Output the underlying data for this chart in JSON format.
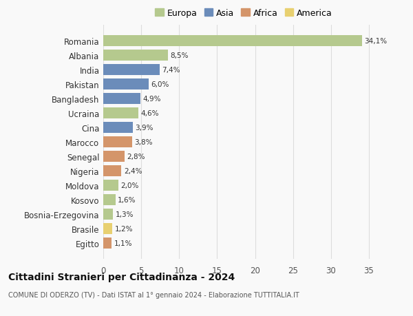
{
  "countries": [
    "Romania",
    "Albania",
    "India",
    "Pakistan",
    "Bangladesh",
    "Ucraina",
    "Cina",
    "Marocco",
    "Senegal",
    "Nigeria",
    "Moldova",
    "Kosovo",
    "Bosnia-Erzegovina",
    "Brasile",
    "Egitto"
  ],
  "values": [
    34.1,
    8.5,
    7.4,
    6.0,
    4.9,
    4.6,
    3.9,
    3.8,
    2.8,
    2.4,
    2.0,
    1.6,
    1.3,
    1.2,
    1.1
  ],
  "labels": [
    "34,1%",
    "8,5%",
    "7,4%",
    "6,0%",
    "4,9%",
    "4,6%",
    "3,9%",
    "3,8%",
    "2,8%",
    "2,4%",
    "2,0%",
    "1,6%",
    "1,3%",
    "1,2%",
    "1,1%"
  ],
  "colors": [
    "#b5c98e",
    "#b5c98e",
    "#6b8cba",
    "#6b8cba",
    "#6b8cba",
    "#b5c98e",
    "#6b8cba",
    "#d4956a",
    "#d4956a",
    "#d4956a",
    "#b5c98e",
    "#b5c98e",
    "#b5c98e",
    "#e8d070",
    "#d4956a"
  ],
  "legend_labels": [
    "Europa",
    "Asia",
    "Africa",
    "America"
  ],
  "legend_colors": [
    "#b5c98e",
    "#6b8cba",
    "#d4956a",
    "#e8d070"
  ],
  "title": "Cittadini Stranieri per Cittadinanza - 2024",
  "subtitle": "COMUNE DI ODERZO (TV) - Dati ISTAT al 1° gennaio 2024 - Elaborazione TUTTITALIA.IT",
  "xlim": [
    0,
    37
  ],
  "xticks": [
    0,
    5,
    10,
    15,
    20,
    25,
    30,
    35
  ],
  "bg_color": "#f9f9f9",
  "grid_color": "#dddddd"
}
